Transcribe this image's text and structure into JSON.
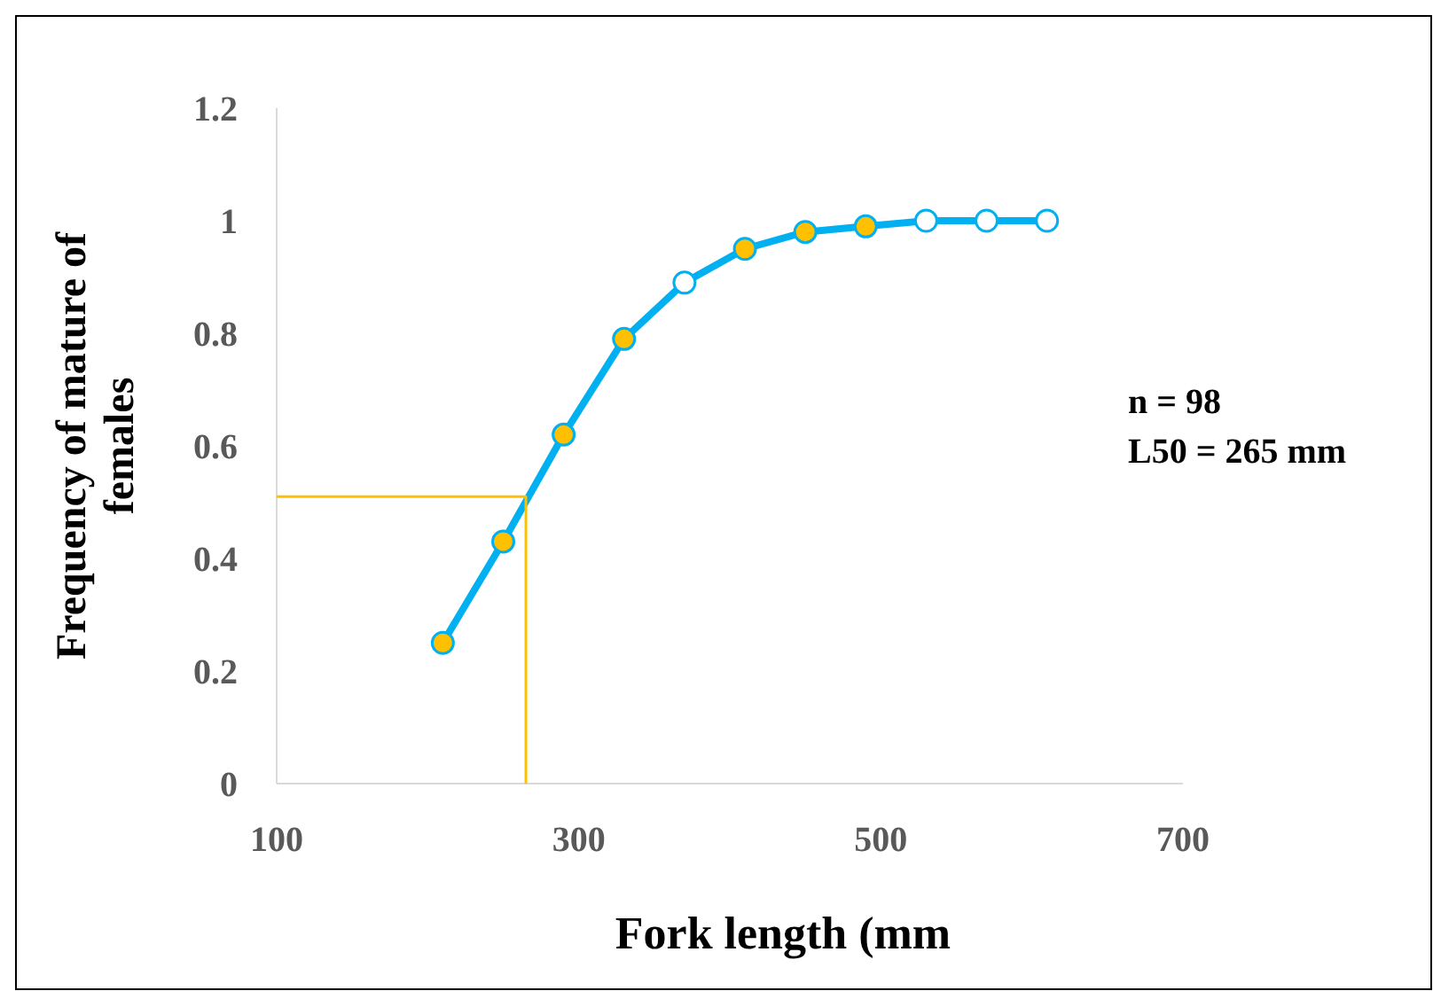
{
  "chart_data": {
    "type": "line",
    "xlabel": "Fork length (mm",
    "ylabel": "Frequency of mature of females",
    "xlim": [
      100,
      700
    ],
    "xticks": [
      100,
      300,
      500,
      700
    ],
    "ylim": [
      0,
      1.2
    ],
    "yticks": [
      0,
      {
        "value": 0.2,
        "label": "0.2"
      },
      {
        "value": 0.4,
        "label": "0.4"
      },
      {
        "value": 0.6,
        "label": "0.6"
      },
      {
        "value": 0.8,
        "label": "0.8"
      },
      1,
      {
        "value": 1.2,
        "label": "1.2"
      }
    ],
    "grid": false,
    "marker": "circle",
    "line_style": "solid",
    "series": [
      {
        "color": "#00b0f0",
        "x": [
          210,
          250,
          290,
          330,
          370,
          410,
          450,
          490,
          530,
          570,
          610
        ],
        "values": [
          0.25,
          0.43,
          0.62,
          0.79,
          0.89,
          0.95,
          0.98,
          0.99,
          1.0,
          1.0,
          1.0
        ],
        "colors": [
          "#ffc000",
          "#ffc000",
          "#ffc000",
          "#ffc000",
          "#ffffff",
          "#ffc000",
          "#ffc000",
          "#ffc000",
          "#ffffff",
          "#ffffff",
          "#ffffff"
        ]
      },
      {
        "color": "#ffc000",
        "marker": "none",
        "x": [
          100,
          265,
          265
        ],
        "values": [
          0.51,
          0.51,
          0
        ]
      }
    ],
    "annotations": [
      "n = 98",
      "L50 = 265 mm"
    ]
  }
}
